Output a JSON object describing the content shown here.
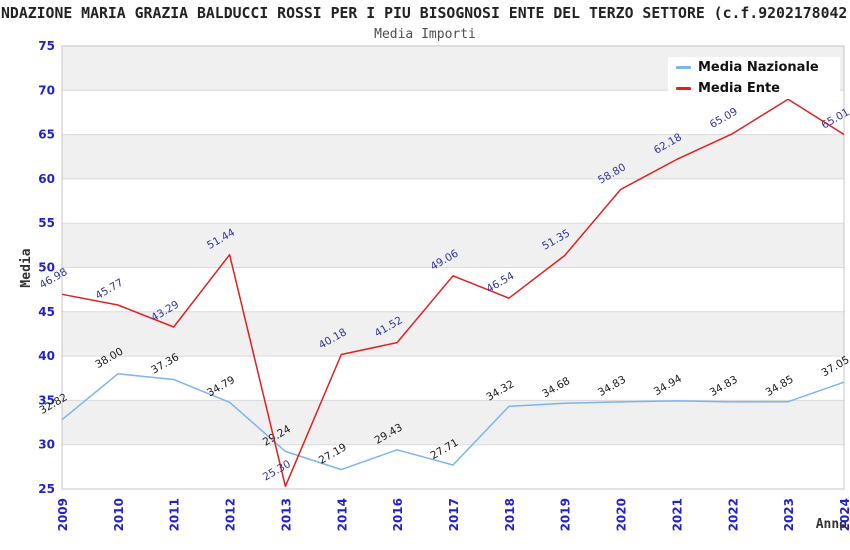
{
  "header": {
    "title": "NDAZIONE MARIA GRAZIA BALDUCCI ROSSI PER I PIU BISOGNOSI ENTE DEL TERZO SETTORE (c.f.9202178042",
    "subtitle": "Media Importi"
  },
  "chart_data": {
    "type": "line",
    "title": "Media Importi",
    "xlabel": "Anno",
    "ylabel": "Media",
    "ylim": [
      25,
      75
    ],
    "yticks": [
      25,
      30,
      35,
      40,
      45,
      50,
      55,
      60,
      65,
      70,
      75
    ],
    "grid": true,
    "alternating_gray_bands": [
      [
        30,
        35
      ],
      [
        40,
        45
      ],
      [
        50,
        55
      ],
      [
        60,
        65
      ],
      [
        70,
        75
      ]
    ],
    "legend_position": "top-right",
    "categories": [
      "2009",
      "2010",
      "2011",
      "2012",
      "2013",
      "2014",
      "2016",
      "2017",
      "2018",
      "2019",
      "2020",
      "2021",
      "2022",
      "2023",
      "2024"
    ],
    "series": [
      {
        "name": "Media Nazionale",
        "color": "#7CB5EC",
        "label_color": "#1A1A1A",
        "values": [
          32.82,
          38.0,
          37.36,
          34.79,
          29.24,
          27.19,
          29.43,
          27.71,
          34.32,
          34.68,
          34.83,
          34.94,
          34.83,
          34.85,
          37.05
        ],
        "labels": [
          "32.82",
          "38.00",
          "37.36",
          "34.79",
          "29.24",
          "27.19",
          "29.43",
          "27.71",
          "34.32",
          "34.68",
          "34.83",
          "34.94",
          "34.83",
          "34.85",
          "37.05"
        ]
      },
      {
        "name": "Media Ente",
        "color": "#DD2222",
        "label_color": "#333399",
        "values": [
          46.98,
          45.77,
          43.29,
          51.44,
          25.3,
          40.18,
          41.52,
          49.06,
          46.54,
          51.35,
          58.8,
          62.18,
          65.09,
          69.0,
          65.01
        ],
        "labels": [
          "46.98",
          "45.77",
          "43.29",
          "51.44",
          "25.30",
          "40.18",
          "41.52",
          "49.06",
          "46.54",
          "51.35",
          "58.80",
          "62.18",
          "65.09",
          "",
          "65.01"
        ]
      }
    ]
  },
  "colors": {
    "axis_tick_blue": "#2222CC",
    "band_gray": "#F0F0F0",
    "grid_line": "#DADADA",
    "plot_border": "#C6C6C6",
    "title": "#222222",
    "subtitle": "#4D4D4D",
    "axis_title": "#333333",
    "legend_background": "#FFFFFF"
  }
}
